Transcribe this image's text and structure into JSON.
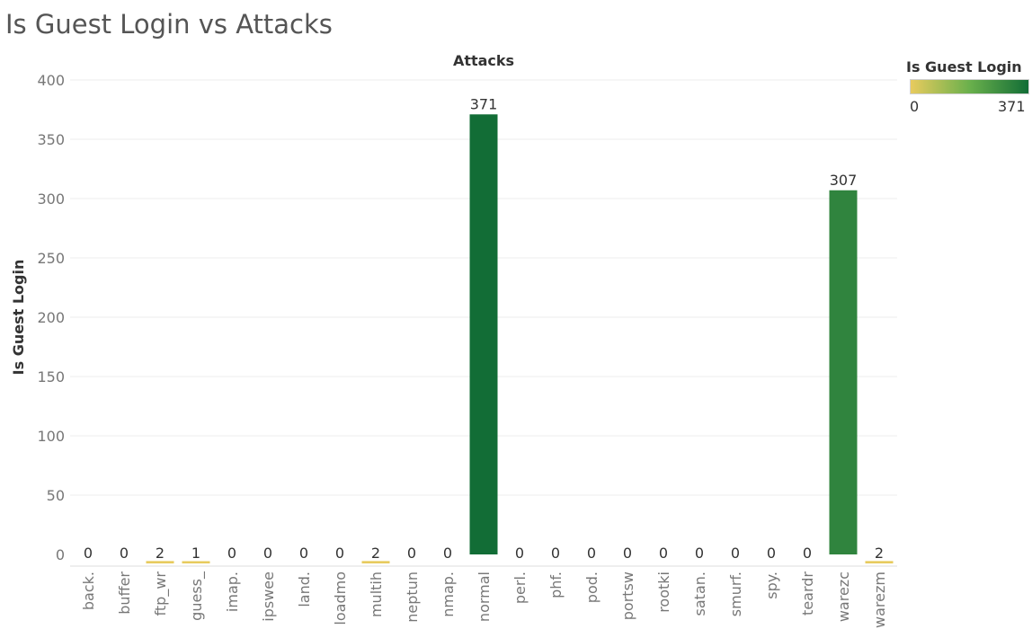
{
  "chart_data": {
    "type": "bar",
    "title": "Is Guest Login vs Attacks",
    "xlabel": "Attacks",
    "ylabel": "Is Guest Login",
    "ylim": [
      0,
      400
    ],
    "yticks": [
      0,
      50,
      100,
      150,
      200,
      250,
      300,
      350,
      400
    ],
    "categories": [
      "back.",
      "buffer",
      "ftp_wr",
      "guess_",
      "imap.",
      "ipswee",
      "land.",
      "loadmo",
      "multih",
      "neptun",
      "nmap.",
      "normal",
      "perl.",
      "phf.",
      "pod.",
      "portsw",
      "rootki",
      "satan.",
      "smurf.",
      "spy.",
      "teardr",
      "warezc",
      "warezm"
    ],
    "values": [
      0,
      0,
      2,
      1,
      0,
      0,
      0,
      0,
      2,
      0,
      0,
      371,
      0,
      0,
      0,
      0,
      0,
      0,
      0,
      0,
      0,
      307,
      2
    ],
    "grid": true,
    "legend": {
      "title": "Is Guest Login",
      "min_label": "0",
      "max_label": "371",
      "min": 0,
      "max": 371,
      "color_low": "#e8cb5e",
      "color_mid": "#6ab04c",
      "color_high": "#126d36",
      "placement": "top-right"
    }
  }
}
